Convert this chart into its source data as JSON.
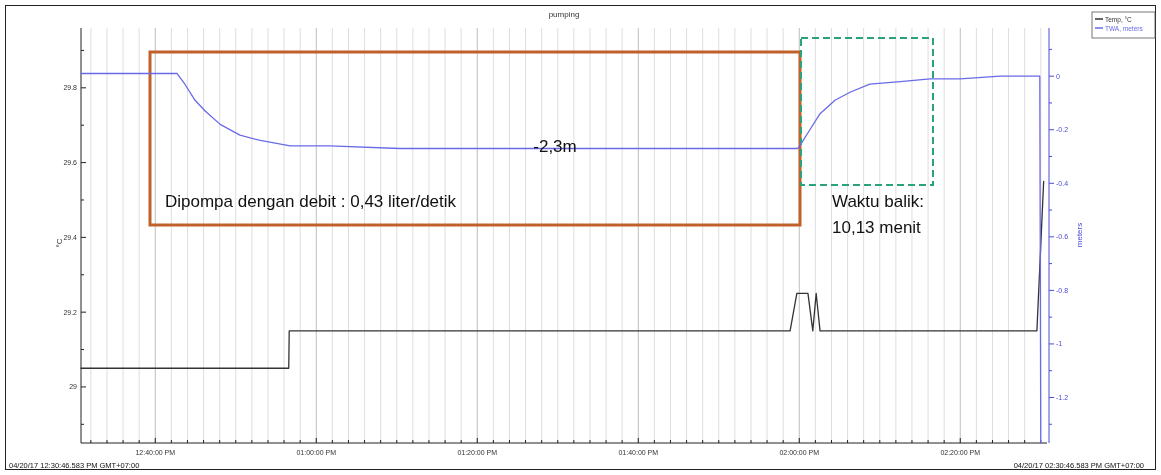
{
  "chart_data": {
    "type": "line",
    "title": "pumping",
    "ylabel": "°C",
    "y2label": "meters",
    "annotations": [
      "-2,3m",
      "Dipompa dengan debit : 0,43 liter/detik",
      "Waktu balik:\n10,13 menit",
      "04/20/17 12:30:46.583 PM GMT+07:00",
      "04/20/17 02:30:46.583 PM GMT+07:00"
    ],
    "xlim": [
      12.5129,
      14.5129
    ],
    "xticks": [
      {
        "value": 12.5333,
        "label": null
      },
      {
        "value": 12.5667,
        "label": null
      },
      {
        "value": 12.6,
        "label": null
      },
      {
        "value": 12.6333,
        "label": null
      },
      {
        "value": 12.6667,
        "label": "12:40:00 PM"
      },
      {
        "value": 12.7,
        "label": null
      },
      {
        "value": 12.7333,
        "label": null
      },
      {
        "value": 12.7667,
        "label": null
      },
      {
        "value": 12.8,
        "label": null
      },
      {
        "value": 12.8333,
        "label": null
      },
      {
        "value": 12.8667,
        "label": null
      },
      {
        "value": 12.9,
        "label": null
      },
      {
        "value": 12.9333,
        "label": null
      },
      {
        "value": 12.9667,
        "label": null
      },
      {
        "value": 13,
        "label": "01:00:00 PM"
      },
      {
        "value": 13.0333,
        "label": null
      },
      {
        "value": 13.0667,
        "label": null
      },
      {
        "value": 13.1,
        "label": null
      },
      {
        "value": 13.1333,
        "label": null
      },
      {
        "value": 13.1667,
        "label": null
      },
      {
        "value": 13.2,
        "label": null
      },
      {
        "value": 13.2333,
        "label": null
      },
      {
        "value": 13.2667,
        "label": null
      },
      {
        "value": 13.3,
        "label": null
      },
      {
        "value": 13.3333,
        "label": "01:20:00 PM"
      },
      {
        "value": 13.3667,
        "label": null
      },
      {
        "value": 13.4,
        "label": null
      },
      {
        "value": 13.4333,
        "label": null
      },
      {
        "value": 13.4667,
        "label": null
      },
      {
        "value": 13.5,
        "label": null
      },
      {
        "value": 13.5333,
        "label": null
      },
      {
        "value": 13.5667,
        "label": null
      },
      {
        "value": 13.6,
        "label": null
      },
      {
        "value": 13.6333,
        "label": null
      },
      {
        "value": 13.6667,
        "label": "01:40:00 PM"
      },
      {
        "value": 13.7,
        "label": null
      },
      {
        "value": 13.7333,
        "label": null
      },
      {
        "value": 13.7667,
        "label": null
      },
      {
        "value": 13.8,
        "label": null
      },
      {
        "value": 13.8333,
        "label": null
      },
      {
        "value": 13.8667,
        "label": null
      },
      {
        "value": 13.9,
        "label": null
      },
      {
        "value": 13.9333,
        "label": null
      },
      {
        "value": 13.9667,
        "label": null
      },
      {
        "value": 14,
        "label": "02:00:00 PM"
      },
      {
        "value": 14.0333,
        "label": null
      },
      {
        "value": 14.0667,
        "label": null
      },
      {
        "value": 14.1,
        "label": null
      },
      {
        "value": 14.1333,
        "label": null
      },
      {
        "value": 14.1667,
        "label": null
      },
      {
        "value": 14.2,
        "label": null
      },
      {
        "value": 14.2333,
        "label": null
      },
      {
        "value": 14.2667,
        "label": null
      },
      {
        "value": 14.3,
        "label": null
      },
      {
        "value": 14.3333,
        "label": "02:20:00 PM"
      },
      {
        "value": 14.3667,
        "label": null
      },
      {
        "value": 14.4,
        "label": null
      },
      {
        "value": 14.4333,
        "label": null
      },
      {
        "value": 14.4667,
        "label": null
      },
      {
        "value": 14.5,
        "label": null
      }
    ],
    "ylim": [
      28.85,
      29.96
    ],
    "yticks": [
      {
        "value": 28.9,
        "label": null
      },
      29,
      {
        "value": 29.1,
        "label": null
      },
      29.2,
      {
        "value": 29.3,
        "label": null
      },
      29.4,
      {
        "value": 29.5,
        "label": null
      },
      29.6,
      {
        "value": 29.7,
        "label": null
      },
      29.8,
      {
        "value": 29.9,
        "label": null
      }
    ],
    "y2lim": [
      -1.37,
      0.18
    ],
    "y2ticks": [
      {
        "value": 0.1,
        "label": null
      },
      0,
      {
        "value": -0.1,
        "label": null
      },
      -0.2,
      {
        "value": -0.3,
        "label": null
      },
      -0.4,
      {
        "value": -0.5,
        "label": null
      },
      -0.6,
      {
        "value": -0.7,
        "label": null
      },
      -0.8,
      {
        "value": -0.9,
        "label": null
      },
      -1,
      {
        "value": -1.1,
        "label": null
      },
      -1.2,
      {
        "value": -1.3,
        "label": null
      }
    ],
    "grid": "x",
    "legend": "top right",
    "marker": "none",
    "line_style": "solid",
    "series": [
      {
        "name": "Temp, °C",
        "color": "#333333",
        "x": [
          12.5129,
          12.943,
          12.944,
          13.981,
          13.995,
          14.018,
          14.028,
          14.035,
          14.043,
          14.492,
          14.506
        ],
        "values": [
          29.05,
          29.05,
          29.15,
          29.15,
          29.25,
          29.25,
          29.15,
          29.25,
          29.15,
          29.15,
          29.55
        ]
      },
      {
        "name": "TWA, meters",
        "color": "#6a6ae8",
        "axis": "y2",
        "x": [
          12.5129,
          12.712,
          12.728,
          12.749,
          12.77,
          12.801,
          12.842,
          12.884,
          12.946,
          13.028,
          13.173,
          13.38,
          13.587,
          13.795,
          13.997,
          14.001,
          14.022,
          14.043,
          14.074,
          14.105,
          14.146,
          14.209,
          14.271,
          14.333,
          14.416,
          14.498,
          14.5
        ],
        "values": [
          0.01,
          0.01,
          -0.03,
          -0.09,
          -0.13,
          -0.18,
          -0.22,
          -0.24,
          -0.26,
          -0.26,
          -0.27,
          -0.27,
          -0.27,
          -0.27,
          -0.27,
          -0.26,
          -0.2,
          -0.14,
          -0.09,
          -0.06,
          -0.03,
          -0.02,
          -0.01,
          -0.01,
          0,
          0,
          -1.37
        ]
      }
    ]
  }
}
